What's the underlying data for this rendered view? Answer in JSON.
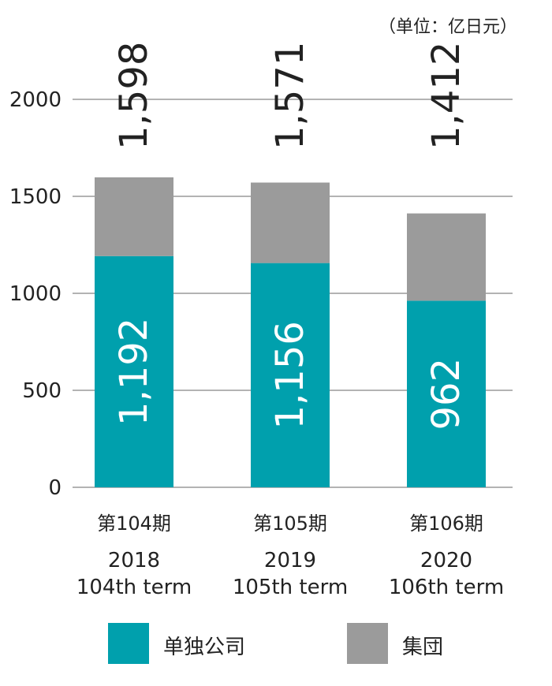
{
  "unit": "（单位：亿日元）",
  "colors": {
    "standalone": "#00a0ad",
    "group": "#9b9b9b",
    "grid": "#9a9a9a",
    "text": "#222222",
    "bar_label": "#ffffff"
  },
  "chart_data": {
    "type": "bar",
    "stacked": true,
    "categories": [
      {
        "period": "第104期",
        "year": "2018",
        "term": "104th term"
      },
      {
        "period": "第105期",
        "year": "2019",
        "term": "105th term"
      },
      {
        "period": "第106期",
        "year": "2020",
        "term": "106th term"
      }
    ],
    "series": [
      {
        "name": "单独公司",
        "values": [
          1192,
          1156,
          962
        ],
        "labels": [
          "1,192",
          "1,156",
          "962"
        ]
      },
      {
        "name": "集団",
        "values": [
          406,
          415,
          450
        ]
      }
    ],
    "totals": [
      1598,
      1571,
      1412
    ],
    "total_labels": [
      "1,598",
      "1,571",
      "1,412"
    ],
    "yticks": [
      "0",
      "500",
      "1000",
      "1500",
      "2000"
    ],
    "ylim": [
      0,
      2000
    ],
    "grid": true,
    "legend_position": "bottom"
  },
  "legend": [
    {
      "label": "单独公司",
      "color_key": "standalone"
    },
    {
      "label": "集団",
      "color_key": "group"
    }
  ]
}
